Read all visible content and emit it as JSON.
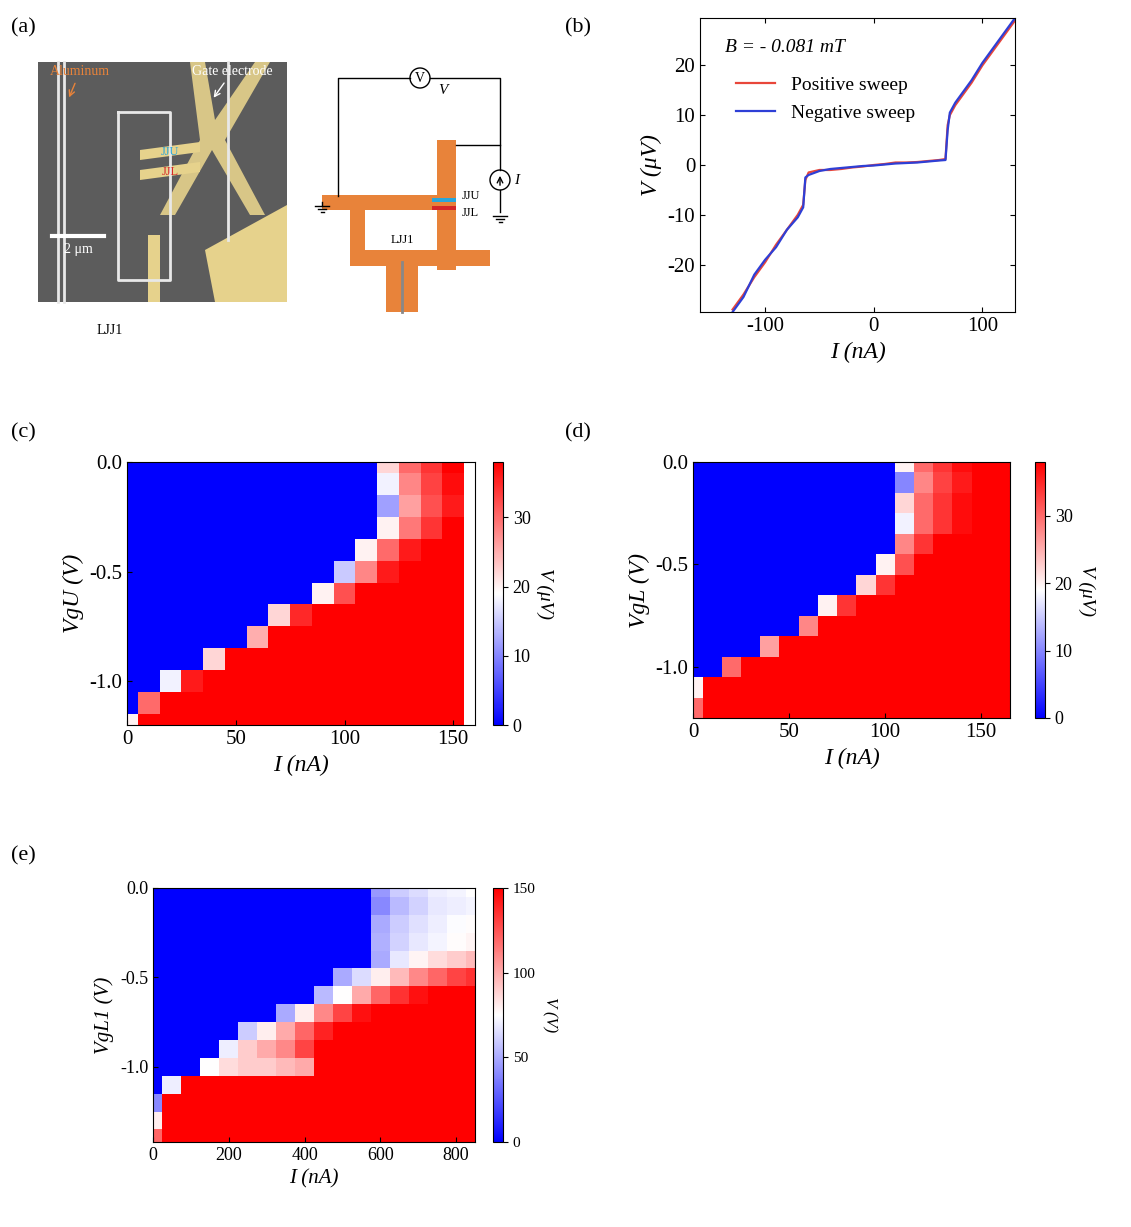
{
  "diagram": {
    "panel": "(a)",
    "sem_image": {
      "aluminum": "Aluminum",
      "gate": "Gate electrode",
      "upper": "JJU",
      "lower": "JJL",
      "scale_bar": "2 μm",
      "loop": "LJJ1"
    },
    "schematic": {
      "voltmeter": "V",
      "voltage": "V",
      "current": "I",
      "upper": "JJU",
      "lower": "JJL",
      "loop": "LJJ1"
    }
  },
  "chart_data": [
    {
      "panel": "(b)",
      "type": "line",
      "annotation": "B = - 0.081 mT",
      "x_label": "I (nA)",
      "y_label": "V (μV)",
      "x": [
        -130,
        -120,
        -110,
        -100,
        -90,
        -80,
        -70,
        -65,
        -63,
        -60,
        -50,
        -40,
        -30,
        -20,
        -10,
        0,
        10,
        20,
        30,
        40,
        50,
        60,
        66,
        68,
        70,
        75,
        80,
        90,
        100,
        110,
        120,
        130
      ],
      "series": [
        {
          "name": "Positive sweep",
          "color": "#e8463a",
          "values": [
            -29,
            -26,
            -22.5,
            -19.5,
            -16,
            -13,
            -10,
            -8,
            -3,
            -1.5,
            -1,
            -1,
            -0.8,
            -0.5,
            -0.3,
            0,
            0.2,
            0.5,
            0.5,
            0.6,
            0.8,
            1,
            1.2,
            8,
            10,
            12,
            13.5,
            16.5,
            20,
            23,
            26,
            29
          ]
        },
        {
          "name": "Negative sweep",
          "color": "#2e3fd6",
          "values": [
            -29.5,
            -26.5,
            -22,
            -19,
            -16.5,
            -13,
            -10.5,
            -8.5,
            -2.5,
            -2,
            -1.2,
            -0.8,
            -0.6,
            -0.4,
            -0.2,
            -0.1,
            0.1,
            0.3,
            0.4,
            0.5,
            0.7,
            0.9,
            1.0,
            7,
            10.5,
            12.5,
            14,
            17,
            20.5,
            23.5,
            26.5,
            29.5
          ]
        }
      ],
      "xlim": [
        -160,
        130
      ],
      "ylim": [
        -29.5,
        29.5
      ],
      "xticks": [
        -100,
        0,
        100
      ],
      "yticks": [
        -20,
        -10,
        0,
        10,
        20
      ],
      "legend": "upper left"
    },
    {
      "panel": "(c)",
      "type": "heatmap",
      "x_label": "I (nA)",
      "y_label": "VgU (V)",
      "x": [
        0,
        10,
        20,
        30,
        40,
        50,
        60,
        70,
        80,
        90,
        100,
        110,
        120,
        130,
        140,
        150
      ],
      "y": [
        0.0,
        -0.1,
        -0.2,
        -0.3,
        -0.4,
        -0.5,
        -0.6,
        -0.7,
        -0.8,
        -0.9,
        -1.0,
        -1.1,
        -1.2
      ],
      "cells": [
        [
          0,
          0,
          0,
          0,
          0,
          0,
          0,
          0,
          0,
          0,
          0,
          0,
          22,
          30,
          34,
          38
        ],
        [
          0,
          0,
          0,
          0,
          0,
          0,
          0,
          0,
          0,
          0,
          0,
          0,
          18,
          28,
          33,
          37
        ],
        [
          0,
          0,
          0,
          0,
          0,
          0,
          0,
          0,
          0,
          0,
          0,
          0,
          12,
          26,
          32,
          36
        ],
        [
          0,
          0,
          0,
          0,
          0,
          0,
          0,
          0,
          0,
          0,
          0,
          0,
          20,
          29,
          34,
          38
        ],
        [
          0,
          0,
          0,
          0,
          0,
          0,
          0,
          0,
          0,
          0,
          0,
          20,
          30,
          36,
          40,
          40
        ],
        [
          0,
          0,
          0,
          0,
          0,
          0,
          0,
          0,
          0,
          0,
          15,
          28,
          36,
          40,
          40,
          40
        ],
        [
          0,
          0,
          0,
          0,
          0,
          0,
          0,
          0,
          0,
          20,
          32,
          40,
          40,
          40,
          40,
          40
        ],
        [
          0,
          0,
          0,
          0,
          0,
          0,
          0,
          22,
          35,
          40,
          40,
          40,
          40,
          40,
          40,
          40
        ],
        [
          0,
          0,
          0,
          0,
          0,
          0,
          25,
          38,
          40,
          40,
          40,
          40,
          40,
          40,
          40,
          40
        ],
        [
          0,
          0,
          0,
          0,
          22,
          38,
          40,
          40,
          40,
          40,
          40,
          40,
          40,
          40,
          40,
          40
        ],
        [
          0,
          0,
          18,
          36,
          40,
          40,
          40,
          40,
          40,
          40,
          40,
          40,
          40,
          40,
          40,
          40
        ],
        [
          0,
          30,
          40,
          40,
          40,
          40,
          40,
          40,
          40,
          40,
          40,
          40,
          40,
          40,
          40,
          40
        ],
        [
          20,
          40,
          40,
          40,
          40,
          40,
          40,
          40,
          40,
          40,
          40,
          40,
          40,
          40,
          40,
          40
        ]
      ],
      "xlim": [
        0,
        160
      ],
      "ylim": [
        -1.2,
        0.0
      ],
      "xticks": [
        0,
        50,
        100,
        150
      ],
      "yticks": [
        0.0,
        -0.5,
        -1.0
      ],
      "colorbar_label": "V (μV)",
      "colorbar_range": [
        0,
        38
      ],
      "colorbar_ticks": [
        0,
        10,
        20,
        30
      ]
    },
    {
      "panel": "(d)",
      "type": "heatmap",
      "x_label": "I (nA)",
      "y_label": "VgL (V)",
      "x": [
        0,
        10,
        20,
        30,
        40,
        50,
        60,
        70,
        80,
        90,
        100,
        110,
        120,
        130,
        140,
        150,
        160
      ],
      "y": [
        0.0,
        -0.1,
        -0.2,
        -0.3,
        -0.4,
        -0.5,
        -0.6,
        -0.7,
        -0.8,
        -0.9,
        -1.0,
        -1.1,
        -1.2
      ],
      "cells": [
        [
          0,
          0,
          0,
          0,
          0,
          0,
          0,
          0,
          0,
          0,
          0,
          20,
          30,
          34,
          37,
          38,
          38
        ],
        [
          0,
          0,
          0,
          0,
          0,
          0,
          0,
          0,
          0,
          0,
          0,
          10,
          28,
          33,
          36,
          38,
          38
        ],
        [
          0,
          0,
          0,
          0,
          0,
          0,
          0,
          0,
          0,
          0,
          0,
          22,
          30,
          34,
          37,
          38,
          38
        ],
        [
          0,
          0,
          0,
          0,
          0,
          0,
          0,
          0,
          0,
          0,
          0,
          18,
          30,
          34,
          37,
          38,
          38
        ],
        [
          0,
          0,
          0,
          0,
          0,
          0,
          0,
          0,
          0,
          0,
          0,
          28,
          34,
          38,
          40,
          40,
          40
        ],
        [
          0,
          0,
          0,
          0,
          0,
          0,
          0,
          0,
          0,
          0,
          20,
          32,
          38,
          40,
          40,
          40,
          40
        ],
        [
          0,
          0,
          0,
          0,
          0,
          0,
          0,
          0,
          0,
          22,
          34,
          40,
          40,
          40,
          40,
          40,
          40
        ],
        [
          0,
          0,
          0,
          0,
          0,
          0,
          0,
          20,
          34,
          40,
          40,
          40,
          40,
          40,
          40,
          40,
          40
        ],
        [
          0,
          0,
          0,
          0,
          0,
          0,
          28,
          38,
          40,
          40,
          40,
          40,
          40,
          40,
          40,
          40,
          40
        ],
        [
          0,
          0,
          0,
          0,
          26,
          38,
          40,
          40,
          40,
          40,
          40,
          40,
          40,
          40,
          40,
          40,
          40
        ],
        [
          0,
          0,
          30,
          40,
          40,
          40,
          40,
          40,
          40,
          40,
          40,
          40,
          40,
          40,
          40,
          40,
          40
        ],
        [
          20,
          40,
          40,
          40,
          40,
          40,
          40,
          40,
          40,
          40,
          40,
          40,
          40,
          40,
          40,
          40,
          40
        ],
        [
          30,
          40,
          40,
          40,
          40,
          40,
          40,
          40,
          40,
          40,
          40,
          40,
          40,
          40,
          40,
          40,
          40
        ]
      ],
      "xlim": [
        0,
        165
      ],
      "ylim": [
        -1.25,
        0.0
      ],
      "xticks": [
        0,
        50,
        100,
        150
      ],
      "yticks": [
        0.0,
        -0.5,
        -1.0
      ],
      "colorbar_label": "V (μV)",
      "colorbar_range": [
        0,
        38
      ],
      "colorbar_ticks": [
        0,
        10,
        20,
        30
      ]
    },
    {
      "panel": "(e)",
      "type": "heatmap",
      "x_label": "I (nA)",
      "y_label": "VgL1 (V)",
      "x": [
        0,
        50,
        100,
        150,
        200,
        250,
        300,
        350,
        400,
        450,
        500,
        550,
        600,
        650,
        700,
        750,
        800,
        850
      ],
      "y": [
        0.0,
        -0.1,
        -0.2,
        -0.3,
        -0.4,
        -0.5,
        -0.6,
        -0.7,
        -0.8,
        -0.9,
        -1.0,
        -1.1,
        -1.2,
        -1.3,
        -1.4
      ],
      "cells": [
        [
          0,
          0,
          0,
          0,
          0,
          0,
          0,
          0,
          0,
          0,
          0,
          0,
          45,
          60,
          65,
          70,
          72,
          75
        ],
        [
          0,
          0,
          0,
          0,
          0,
          0,
          0,
          0,
          0,
          0,
          0,
          0,
          40,
          55,
          62,
          68,
          70,
          72
        ],
        [
          0,
          0,
          0,
          0,
          0,
          0,
          0,
          0,
          0,
          0,
          0,
          0,
          50,
          60,
          66,
          70,
          74,
          76
        ],
        [
          0,
          0,
          0,
          0,
          0,
          0,
          0,
          0,
          0,
          0,
          0,
          0,
          52,
          62,
          68,
          72,
          76,
          78
        ],
        [
          0,
          0,
          0,
          0,
          0,
          0,
          0,
          0,
          0,
          0,
          0,
          0,
          50,
          68,
          78,
          85,
          90,
          95
        ],
        [
          0,
          0,
          0,
          0,
          0,
          0,
          0,
          0,
          0,
          0,
          50,
          65,
          80,
          95,
          110,
          120,
          130,
          135
        ],
        [
          0,
          0,
          0,
          0,
          0,
          0,
          0,
          0,
          0,
          55,
          75,
          100,
          120,
          135,
          145,
          150,
          150,
          150
        ],
        [
          0,
          0,
          0,
          0,
          0,
          0,
          0,
          50,
          80,
          110,
          130,
          145,
          150,
          150,
          150,
          150,
          150,
          150
        ],
        [
          0,
          0,
          0,
          0,
          0,
          60,
          80,
          100,
          120,
          140,
          150,
          150,
          150,
          150,
          150,
          150,
          150,
          150
        ],
        [
          0,
          0,
          0,
          0,
          70,
          90,
          100,
          110,
          130,
          150,
          150,
          150,
          150,
          150,
          150,
          150,
          150,
          150
        ],
        [
          0,
          0,
          0,
          75,
          85,
          90,
          90,
          95,
          100,
          150,
          150,
          150,
          150,
          150,
          150,
          150,
          150,
          150
        ],
        [
          0,
          70,
          150,
          150,
          150,
          150,
          150,
          150,
          150,
          150,
          150,
          150,
          150,
          150,
          150,
          150,
          150,
          150
        ],
        [
          40,
          150,
          150,
          150,
          150,
          150,
          150,
          150,
          150,
          150,
          150,
          150,
          150,
          150,
          150,
          150,
          150,
          150
        ],
        [
          80,
          150,
          150,
          150,
          150,
          150,
          150,
          150,
          150,
          150,
          150,
          150,
          150,
          150,
          150,
          150,
          150,
          150
        ],
        [
          120,
          150,
          150,
          150,
          150,
          150,
          150,
          150,
          150,
          150,
          150,
          150,
          150,
          150,
          150,
          150,
          150,
          150
        ]
      ],
      "xlim": [
        0,
        850
      ],
      "ylim": [
        -1.42,
        0.0
      ],
      "xticks": [
        0,
        200,
        400,
        600,
        800
      ],
      "yticks": [
        0.0,
        -0.5,
        -1.0
      ],
      "colorbar_label": "V (V)",
      "colorbar_range": [
        0,
        150
      ],
      "colorbar_ticks": [
        0,
        50,
        100,
        150
      ]
    }
  ]
}
